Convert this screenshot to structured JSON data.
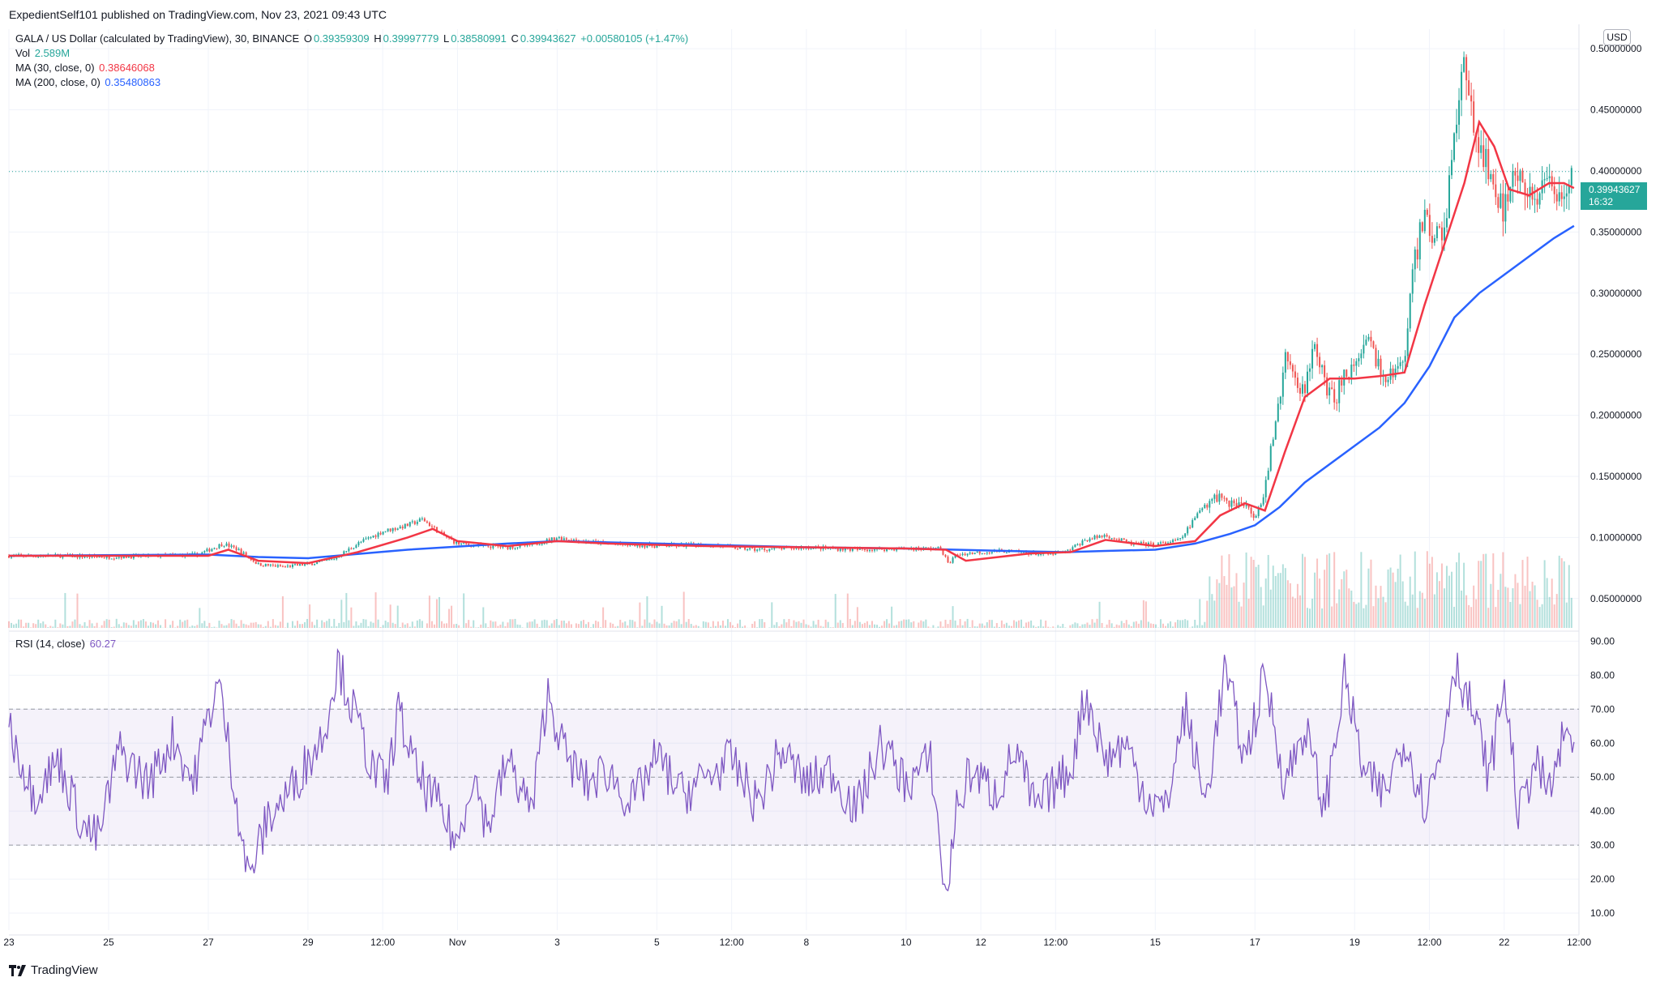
{
  "publisher_line": "ExpedientSelf101 published on TradingView.com, Nov 23, 2021 09:43 UTC",
  "legend": {
    "symbol": "GALA / US Dollar (calculated by TradingView), 30, BINANCE",
    "o_label": "O",
    "o_value": "0.39359309",
    "h_label": "H",
    "h_value": "0.39997779",
    "l_label": "L",
    "l_value": "0.38580991",
    "c_label": "C",
    "c_value": "0.39943627",
    "change": "+0.00580105 (+1.47%)",
    "vol_label": "Vol",
    "vol_value": "2.589M",
    "ma30_label": "MA (30, close, 0)",
    "ma30_value": "0.38646068",
    "ma200_label": "MA (200, close, 0)",
    "ma200_value": "0.35480863",
    "rsi_label": "RSI (14, close)",
    "rsi_value": "60.27"
  },
  "currency_badge": "USD",
  "last_price_tag": {
    "price": "0.39943627",
    "countdown": "16:32"
  },
  "logo_text": "TradingView",
  "colors": {
    "up": "#26a69a",
    "down": "#ef5350",
    "ma30": "#f23645",
    "ma200": "#2962ff",
    "rsi": "#7e57c2",
    "rsi_band": "#7e57c2",
    "grid": "#f0f3fa",
    "text": "#131722"
  },
  "chart_data": [
    {
      "type": "line",
      "subtype": "candlestick",
      "symbol": "GALA/USD",
      "interval_minutes": 30,
      "y_scale": "linear",
      "ylim": [
        0.026,
        0.516
      ],
      "yticks": [
        0.05,
        0.1,
        0.15,
        0.2,
        0.25,
        0.3,
        0.35,
        0.4,
        0.45,
        0.5
      ],
      "ytick_labels": [
        "0.05000000",
        "0.10000000",
        "0.15000000",
        "0.20000000",
        "0.25000000",
        "0.30000000",
        "0.35000000",
        "0.40000000",
        "0.45000000",
        "0.50000000"
      ],
      "xlim": [
        0,
        31.5
      ],
      "xticks": [
        0,
        2,
        4,
        6,
        7.5,
        9,
        11,
        13,
        14.5,
        16,
        18,
        19.5,
        21,
        23,
        25,
        27,
        28.5,
        30,
        31.5
      ],
      "xtick_labels": [
        "23",
        "25",
        "27",
        "29",
        "12:00",
        "Nov",
        "3",
        "5",
        "12:00",
        "8",
        "10",
        "12",
        "12:00",
        "15",
        "17",
        "19",
        "12:00",
        "22",
        "12:00"
      ],
      "grid": true,
      "last_price": 0.39943627,
      "close_series": {
        "x": [
          0,
          1,
          2,
          3,
          3.8,
          4.3,
          4.6,
          5,
          5.5,
          6,
          6.5,
          7,
          7.5,
          8,
          8.3,
          8.7,
          9,
          9.5,
          10,
          10.5,
          11,
          11.5,
          12,
          13,
          14,
          15,
          16,
          17,
          18,
          18.7,
          18.85,
          19,
          19.5,
          20,
          20.8,
          21.2,
          21.6,
          22,
          22.5,
          23,
          23.5,
          24,
          24.3,
          24.6,
          24.8,
          25,
          25.2,
          25.4,
          25.6,
          25.8,
          26,
          26.2,
          26.4,
          26.6,
          26.8,
          27,
          27.3,
          27.6,
          27.8,
          28,
          28.2,
          28.4,
          28.6,
          28.8,
          29,
          29.2,
          29.4,
          29.6,
          29.8,
          30,
          30.2,
          30.4,
          30.6,
          30.8,
          31,
          31.2,
          31.4
        ],
        "y": [
          0.085,
          0.085,
          0.084,
          0.085,
          0.086,
          0.095,
          0.09,
          0.078,
          0.076,
          0.078,
          0.082,
          0.095,
          0.105,
          0.11,
          0.115,
          0.102,
          0.095,
          0.093,
          0.092,
          0.094,
          0.1,
          0.097,
          0.095,
          0.093,
          0.094,
          0.09,
          0.092,
          0.09,
          0.091,
          0.091,
          0.078,
          0.086,
          0.088,
          0.089,
          0.086,
          0.088,
          0.098,
          0.102,
          0.095,
          0.094,
          0.098,
          0.128,
          0.135,
          0.126,
          0.13,
          0.118,
          0.14,
          0.19,
          0.245,
          0.23,
          0.22,
          0.26,
          0.225,
          0.21,
          0.24,
          0.235,
          0.26,
          0.225,
          0.235,
          0.25,
          0.33,
          0.36,
          0.345,
          0.355,
          0.43,
          0.48,
          0.44,
          0.41,
          0.38,
          0.37,
          0.41,
          0.385,
          0.37,
          0.395,
          0.375,
          0.385,
          0.399
        ]
      }
    },
    {
      "type": "line",
      "name": "MA (30, close, 0)",
      "x": [
        0,
        2,
        4,
        4.4,
        5,
        6,
        7,
        8,
        8.5,
        9,
        10,
        11,
        12,
        14,
        16,
        18,
        18.8,
        19.2,
        20.5,
        21.3,
        22,
        23,
        23.8,
        24.3,
        24.8,
        25.2,
        25.6,
        26,
        26.5,
        27,
        27.5,
        28,
        28.4,
        28.8,
        29.2,
        29.5,
        29.8,
        30.1,
        30.5,
        30.9,
        31.2,
        31.4
      ],
      "y": [
        0.085,
        0.085,
        0.085,
        0.09,
        0.081,
        0.079,
        0.088,
        0.1,
        0.107,
        0.097,
        0.093,
        0.097,
        0.095,
        0.093,
        0.092,
        0.091,
        0.09,
        0.081,
        0.087,
        0.088,
        0.098,
        0.093,
        0.097,
        0.118,
        0.128,
        0.122,
        0.17,
        0.215,
        0.23,
        0.23,
        0.232,
        0.235,
        0.29,
        0.34,
        0.39,
        0.44,
        0.42,
        0.385,
        0.38,
        0.39,
        0.39,
        0.386
      ]
    },
    {
      "type": "line",
      "name": "MA (200, close, 0)",
      "x": [
        0,
        4,
        5,
        6,
        8,
        10,
        11,
        13,
        16,
        18,
        19,
        20,
        21.2,
        22,
        23,
        23.8,
        24.5,
        25,
        25.5,
        26,
        27,
        27.5,
        28,
        28.5,
        29,
        29.5,
        30,
        30.5,
        31,
        31.4
      ],
      "y": [
        0.085,
        0.086,
        0.084,
        0.083,
        0.09,
        0.095,
        0.097,
        0.095,
        0.092,
        0.091,
        0.09,
        0.089,
        0.088,
        0.089,
        0.09,
        0.095,
        0.103,
        0.11,
        0.125,
        0.145,
        0.175,
        0.19,
        0.21,
        0.24,
        0.28,
        0.3,
        0.315,
        0.33,
        0.345,
        0.355
      ]
    },
    {
      "type": "bar",
      "name": "Vol",
      "note_values_relative": true,
      "last_value": "2.589M"
    },
    {
      "type": "line",
      "name": "RSI (14, close)",
      "ylim": [
        5,
        92
      ],
      "yticks": [
        10,
        20,
        30,
        40,
        50,
        60,
        70,
        80,
        90
      ],
      "ytick_labels": [
        "10.00",
        "20.00",
        "30.00",
        "40.00",
        "50.00",
        "60.00",
        "70.00",
        "80.00",
        "90.00"
      ],
      "band": [
        30,
        70
      ],
      "midline": 50,
      "x": [
        0,
        0.5,
        1,
        1.5,
        1.8,
        2.2,
        2.8,
        3.3,
        3.7,
        4,
        4.2,
        4.4,
        4.8,
        5.2,
        5.6,
        6,
        6.3,
        6.6,
        6.9,
        7.3,
        7.6,
        7.8,
        8.2,
        8.6,
        9,
        9.3,
        9.6,
        10,
        10.5,
        10.8,
        11.2,
        11.6,
        12,
        12.5,
        13,
        13.5,
        14,
        14.5,
        15,
        15.5,
        16,
        16.5,
        17,
        17.5,
        18,
        18.5,
        18.8,
        19,
        19.3,
        19.8,
        20.2,
        20.6,
        21,
        21.3,
        21.6,
        22,
        22.4,
        22.8,
        23.2,
        23.6,
        24,
        24.4,
        24.8,
        25.2,
        25.6,
        26,
        26.4,
        26.8,
        27.2,
        27.6,
        28,
        28.4,
        28.7,
        29,
        29.4,
        29.7,
        30,
        30.3,
        30.6,
        30.9,
        31.2,
        31.4
      ],
      "y": [
        65,
        45,
        55,
        35,
        32,
        58,
        48,
        62,
        48,
        68,
        78,
        60,
        20,
        38,
        45,
        55,
        62,
        84,
        70,
        52,
        48,
        70,
        50,
        42,
        30,
        52,
        35,
        55,
        40,
        75,
        55,
        48,
        52,
        42,
        56,
        45,
        50,
        55,
        42,
        58,
        48,
        52,
        40,
        60,
        48,
        55,
        13,
        40,
        52,
        45,
        58,
        40,
        48,
        52,
        75,
        55,
        60,
        45,
        40,
        70,
        42,
        82,
        55,
        80,
        48,
        65,
        40,
        80,
        50,
        45,
        62,
        42,
        55,
        84,
        68,
        50,
        78,
        38,
        55,
        45,
        62,
        60
      ]
    }
  ]
}
